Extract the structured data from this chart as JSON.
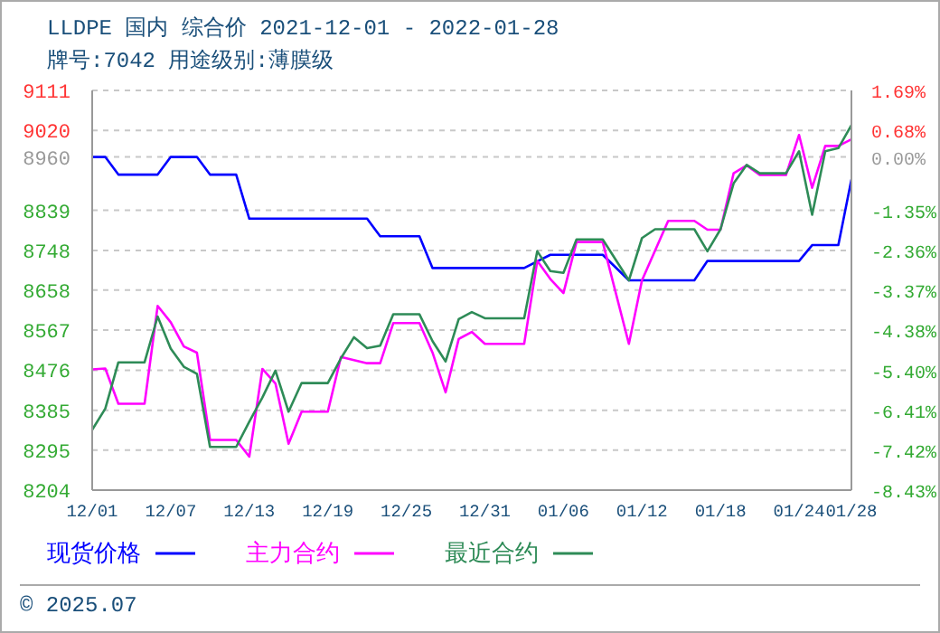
{
  "chart_data": {
    "type": "line",
    "title": "LLDPE 国内 综合价 2021-12-01 - 2022-01-28",
    "subtitle": "牌号:7042 用途级别:薄膜级",
    "annotations": [
      "© 2025.07"
    ],
    "xlim": [
      "2021-12-01",
      "2022-01-28"
    ],
    "xticks": [
      {
        "value": "2021-12-01",
        "label": "12/01"
      },
      {
        "value": "2021-12-07",
        "label": "12/07"
      },
      {
        "value": "2021-12-13",
        "label": "12/13"
      },
      {
        "value": "2021-12-19",
        "label": "12/19"
      },
      {
        "value": "2021-12-25",
        "label": "12/25"
      },
      {
        "value": "2021-12-31",
        "label": "12/31"
      },
      {
        "value": "2022-01-06",
        "label": "01/06"
      },
      {
        "value": "2022-01-12",
        "label": "01/12"
      },
      {
        "value": "2022-01-18",
        "label": "01/18"
      },
      {
        "value": "2022-01-24",
        "label": "01/24"
      },
      {
        "value": "2022-01-28",
        "label": "01/28"
      }
    ],
    "ylim": [
      8204,
      9111
    ],
    "yticks": [
      8204,
      8295,
      8385,
      8476,
      8567,
      8658,
      8748,
      8839,
      8960,
      9020,
      9111
    ],
    "y2lim": [
      -8.43,
      1.69
    ],
    "y2ticks": [
      {
        "value": -8.43,
        "label": "-8.43%"
      },
      {
        "value": -7.42,
        "label": "-7.42%"
      },
      {
        "value": -6.41,
        "label": "-6.41%"
      },
      {
        "value": -5.4,
        "label": "-5.40%"
      },
      {
        "value": -4.38,
        "label": "-4.38%"
      },
      {
        "value": -3.37,
        "label": "-3.37%"
      },
      {
        "value": -2.36,
        "label": "-2.36%"
      },
      {
        "value": -1.35,
        "label": "-1.35%"
      },
      {
        "value": 0,
        "label": "0.00%"
      },
      {
        "value": 0.68,
        "label": "0.68%"
      },
      {
        "value": 1.69,
        "label": "1.69%"
      }
    ],
    "grid": true,
    "legend": "bottom",
    "marker": "none",
    "series": [
      {
        "name": "现货价格",
        "color": "#0000ff",
        "x": [
          "2021-12-01",
          "2021-12-02",
          "2021-12-03",
          "2021-12-06",
          "2021-12-07",
          "2021-12-09",
          "2021-12-10",
          "2021-12-12",
          "2021-12-13",
          "2021-12-22",
          "2021-12-23",
          "2021-12-26",
          "2021-12-27",
          "2022-01-03",
          "2022-01-05",
          "2022-01-09",
          "2022-01-11",
          "2022-01-16",
          "2022-01-17",
          "2022-01-24",
          "2022-01-25",
          "2022-01-27",
          "2022-01-28"
        ],
        "values": [
          8960,
          8960,
          8920,
          8920,
          8960,
          8960,
          8920,
          8920,
          8820,
          8820,
          8780,
          8780,
          8708,
          8708,
          8738,
          8738,
          8680,
          8680,
          8724,
          8724,
          8760,
          8760,
          8909
        ]
      },
      {
        "name": "主力合约",
        "color": "#ff00ff",
        "x": [
          "2021-12-01",
          "2021-12-02",
          "2021-12-03",
          "2021-12-05",
          "2021-12-06",
          "2021-12-07",
          "2021-12-08",
          "2021-12-09",
          "2021-12-10",
          "2021-12-12",
          "2021-12-13",
          "2021-12-14",
          "2021-12-15",
          "2021-12-16",
          "2021-12-17",
          "2021-12-19",
          "2021-12-20",
          "2021-12-22",
          "2021-12-23",
          "2021-12-24",
          "2021-12-26",
          "2021-12-27",
          "2021-12-28",
          "2021-12-29",
          "2021-12-30",
          "2021-12-31",
          "2022-01-03",
          "2022-01-04",
          "2022-01-05",
          "2022-01-06",
          "2022-01-07",
          "2022-01-09",
          "2022-01-11",
          "2022-01-12",
          "2022-01-14",
          "2022-01-16",
          "2022-01-17",
          "2022-01-18",
          "2022-01-19",
          "2022-01-20",
          "2022-01-21",
          "2022-01-23",
          "2022-01-24",
          "2022-01-25",
          "2022-01-26",
          "2022-01-27",
          "2022-01-28"
        ],
        "values": [
          8478,
          8480,
          8400,
          8400,
          8622,
          8585,
          8530,
          8516,
          8318,
          8318,
          8280,
          8479,
          8446,
          8309,
          8382,
          8382,
          8506,
          8492,
          8492,
          8583,
          8583,
          8516,
          8426,
          8547,
          8563,
          8536,
          8536,
          8724,
          8683,
          8651,
          8767,
          8767,
          8536,
          8680,
          8815,
          8815,
          8795,
          8795,
          8923,
          8941,
          8919,
          8919,
          9010,
          8890,
          8985,
          8985,
          9000
        ]
      },
      {
        "name": "最近合约",
        "color": "#2e8b57",
        "x": [
          "2021-12-01",
          "2021-12-02",
          "2021-12-03",
          "2021-12-05",
          "2021-12-06",
          "2021-12-07",
          "2021-12-08",
          "2021-12-09",
          "2021-12-10",
          "2021-12-12",
          "2021-12-13",
          "2021-12-14",
          "2021-12-15",
          "2021-12-16",
          "2021-12-17",
          "2021-12-19",
          "2021-12-20",
          "2021-12-21",
          "2021-12-22",
          "2021-12-23",
          "2021-12-24",
          "2021-12-26",
          "2021-12-27",
          "2021-12-28",
          "2021-12-29",
          "2021-12-30",
          "2021-12-31",
          "2022-01-03",
          "2022-01-04",
          "2022-01-05",
          "2022-01-06",
          "2022-01-07",
          "2022-01-09",
          "2022-01-11",
          "2022-01-12",
          "2022-01-13",
          "2022-01-16",
          "2022-01-17",
          "2022-01-18",
          "2022-01-19",
          "2022-01-20",
          "2022-01-21",
          "2022-01-23",
          "2022-01-24",
          "2022-01-25",
          "2022-01-26",
          "2022-01-27",
          "2022-01-28"
        ],
        "values": [
          8341,
          8389,
          8494,
          8494,
          8598,
          8525,
          8484,
          8468,
          8302,
          8302,
          8359,
          8414,
          8475,
          8382,
          8447,
          8447,
          8503,
          8551,
          8526,
          8532,
          8603,
          8603,
          8542,
          8496,
          8592,
          8608,
          8594,
          8594,
          8746,
          8701,
          8697,
          8773,
          8773,
          8680,
          8776,
          8796,
          8796,
          8746,
          8796,
          8900,
          8942,
          8923,
          8923,
          8973,
          8829,
          8973,
          8980,
          9032
        ]
      }
    ]
  }
}
